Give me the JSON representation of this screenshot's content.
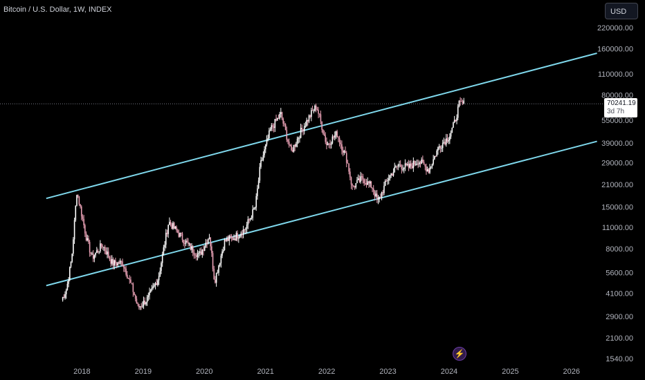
{
  "header": {
    "title": "Bitcoin / U.S. Dollar, 1W, INDEX"
  },
  "toolbar": {
    "currency": "USD"
  },
  "price_label": {
    "price": "70241.19",
    "countdown": "3d 7h"
  },
  "icons": {
    "flash": "flash-icon"
  },
  "colors": {
    "up": "#ffffff",
    "down": "#e8a0b4",
    "channel": "#7fd8ec",
    "background": "#000000",
    "axis_text": "#b2b5be"
  },
  "chart_data": {
    "type": "candlestick",
    "title": "Bitcoin / U.S. Dollar, 1W, INDEX",
    "scale": "log",
    "grid": false,
    "x_ticks": [
      "2018",
      "2019",
      "2020",
      "2021",
      "2022",
      "2023",
      "2024",
      "2025",
      "2026"
    ],
    "y_ticks": [
      "220000.00",
      "160000.00",
      "110000.00",
      "80000.00",
      "55000.00",
      "39000.00",
      "29000.00",
      "21000.00",
      "15000.00",
      "11000.00",
      "8000.00",
      "5600.00",
      "4100.00",
      "2900.00",
      "2100.00",
      "1540.00"
    ],
    "ylim": [
      1400,
      300000
    ],
    "current_price": 70241.19,
    "price_series": [
      {
        "x": "2017-09",
        "y": 3700
      },
      {
        "x": "2017-10",
        "y": 4400
      },
      {
        "x": "2017-11",
        "y": 7000
      },
      {
        "x": "2017-12",
        "y": 19000
      },
      {
        "x": "2018-02",
        "y": 9000
      },
      {
        "x": "2018-03",
        "y": 7000
      },
      {
        "x": "2018-05",
        "y": 8500
      },
      {
        "x": "2018-07",
        "y": 6400
      },
      {
        "x": "2018-09",
        "y": 6500
      },
      {
        "x": "2018-11",
        "y": 4300
      },
      {
        "x": "2018-12",
        "y": 3300
      },
      {
        "x": "2019-02",
        "y": 3800
      },
      {
        "x": "2019-04",
        "y": 5200
      },
      {
        "x": "2019-06",
        "y": 12000
      },
      {
        "x": "2019-08",
        "y": 10000
      },
      {
        "x": "2019-10",
        "y": 8300
      },
      {
        "x": "2019-12",
        "y": 7200
      },
      {
        "x": "2020-02",
        "y": 9800
      },
      {
        "x": "2020-03",
        "y": 4900
      },
      {
        "x": "2020-05",
        "y": 9000
      },
      {
        "x": "2020-07",
        "y": 9500
      },
      {
        "x": "2020-09",
        "y": 10800
      },
      {
        "x": "2020-11",
        "y": 15000
      },
      {
        "x": "2020-12",
        "y": 28000
      },
      {
        "x": "2021-02",
        "y": 48000
      },
      {
        "x": "2021-04",
        "y": 60000
      },
      {
        "x": "2021-06",
        "y": 34000
      },
      {
        "x": "2021-08",
        "y": 47000
      },
      {
        "x": "2021-10",
        "y": 61000
      },
      {
        "x": "2021-11",
        "y": 68000
      },
      {
        "x": "2022-01",
        "y": 38000
      },
      {
        "x": "2022-03",
        "y": 45000
      },
      {
        "x": "2022-05",
        "y": 30000
      },
      {
        "x": "2022-06",
        "y": 20000
      },
      {
        "x": "2022-08",
        "y": 23000
      },
      {
        "x": "2022-10",
        "y": 20000
      },
      {
        "x": "2022-11",
        "y": 16000
      },
      {
        "x": "2023-01",
        "y": 23000
      },
      {
        "x": "2023-03",
        "y": 28000
      },
      {
        "x": "2023-05",
        "y": 27000
      },
      {
        "x": "2023-07",
        "y": 30000
      },
      {
        "x": "2023-09",
        "y": 26000
      },
      {
        "x": "2023-11",
        "y": 37000
      },
      {
        "x": "2024-01",
        "y": 43000
      },
      {
        "x": "2024-02",
        "y": 52000
      },
      {
        "x": "2024-03",
        "y": 70000
      },
      {
        "x": "2024-04",
        "y": 70241
      }
    ],
    "channel_lines": [
      {
        "name": "upper",
        "points": [
          {
            "x": "2017-06",
            "y": 17000
          },
          {
            "x": "2026-06",
            "y": 150000
          }
        ]
      },
      {
        "name": "lower",
        "points": [
          {
            "x": "2017-06",
            "y": 4600
          },
          {
            "x": "2026-06",
            "y": 40000
          }
        ]
      }
    ]
  }
}
